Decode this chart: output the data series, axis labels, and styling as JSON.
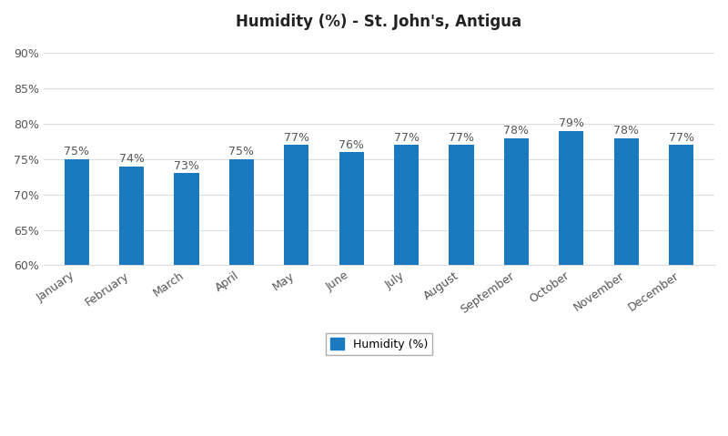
{
  "title": "Humidity (%) - St. John's, Antigua",
  "categories": [
    "January",
    "February",
    "March",
    "April",
    "May",
    "June",
    "July",
    "August",
    "September",
    "October",
    "November",
    "December"
  ],
  "values": [
    75,
    74,
    73,
    75,
    77,
    76,
    77,
    77,
    78,
    79,
    78,
    77
  ],
  "bar_color": "#1a7abf",
  "ylim": [
    60,
    92
  ],
  "yticks": [
    60,
    65,
    70,
    75,
    80,
    85,
    90
  ],
  "background_color": "#ffffff",
  "legend_label": "Humidity (%)",
  "title_fontsize": 12,
  "label_fontsize": 9,
  "tick_fontsize": 9,
  "annotation_fontsize": 9,
  "grid_color": "#dddddd",
  "bar_width": 0.45
}
